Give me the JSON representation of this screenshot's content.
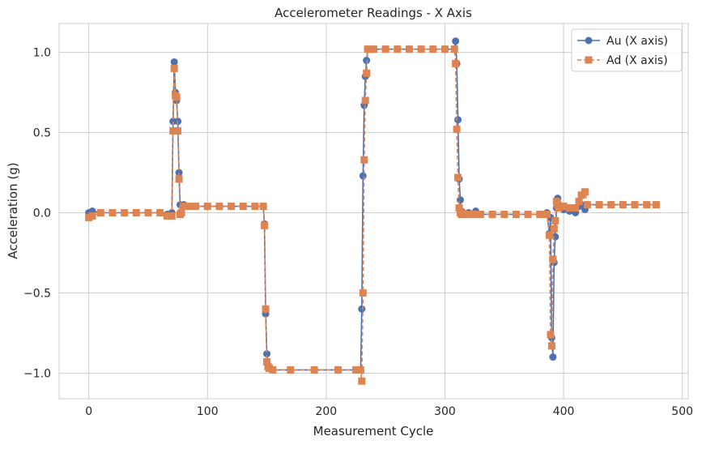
{
  "chart_data": {
    "type": "line",
    "title": "Accelerometer Readings - X Axis",
    "xlabel": "Measurement Cycle",
    "ylabel": "Acceleration (g)",
    "xlim": [
      -25,
      505
    ],
    "ylim": [
      -1.16,
      1.18
    ],
    "xticks": [
      0,
      100,
      200,
      300,
      400,
      500
    ],
    "xtick_labels": [
      "0",
      "100",
      "200",
      "300",
      "400",
      "500"
    ],
    "yticks": [
      -1.0,
      -0.5,
      0.0,
      0.5,
      1.0
    ],
    "ytick_labels": [
      "−1.0",
      "−0.5",
      "0.0",
      "0.5",
      "1.0"
    ],
    "grid": true,
    "legend_position": "top-right",
    "series": [
      {
        "name": "Au (X axis)",
        "color": "#4c72b0",
        "marker": "circle",
        "linestyle": "solid",
        "points": [
          [
            0,
            0.0
          ],
          [
            3,
            0.01
          ],
          [
            10,
            0.0
          ],
          [
            20,
            0.0
          ],
          [
            30,
            0.0
          ],
          [
            40,
            0.0
          ],
          [
            50,
            0.0
          ],
          [
            60,
            0.0
          ],
          [
            66,
            -0.01
          ],
          [
            70,
            0.0
          ],
          [
            71,
            0.57
          ],
          [
            72,
            0.94
          ],
          [
            73,
            0.75
          ],
          [
            74,
            0.7
          ],
          [
            75,
            0.57
          ],
          [
            76,
            0.25
          ],
          [
            77,
            0.05
          ],
          [
            78,
            0.0
          ],
          [
            80,
            0.05
          ],
          [
            85,
            0.04
          ],
          [
            90,
            0.04
          ],
          [
            100,
            0.04
          ],
          [
            110,
            0.04
          ],
          [
            120,
            0.04
          ],
          [
            130,
            0.04
          ],
          [
            140,
            0.04
          ],
          [
            147,
            0.04
          ],
          [
            148,
            -0.07
          ],
          [
            149,
            -0.63
          ],
          [
            150,
            -0.88
          ],
          [
            151,
            -0.95
          ],
          [
            152,
            -0.97
          ],
          [
            155,
            -0.98
          ],
          [
            170,
            -0.98
          ],
          [
            190,
            -0.98
          ],
          [
            210,
            -0.98
          ],
          [
            225,
            -0.98
          ],
          [
            229,
            -0.98
          ],
          [
            230,
            -0.6
          ],
          [
            231,
            0.23
          ],
          [
            232,
            0.67
          ],
          [
            233,
            0.85
          ],
          [
            234,
            0.95
          ],
          [
            235,
            1.02
          ],
          [
            240,
            1.02
          ],
          [
            250,
            1.02
          ],
          [
            260,
            1.02
          ],
          [
            270,
            1.02
          ],
          [
            280,
            1.02
          ],
          [
            290,
            1.02
          ],
          [
            300,
            1.02
          ],
          [
            308,
            1.02
          ],
          [
            309,
            1.07
          ],
          [
            310,
            0.93
          ],
          [
            311,
            0.58
          ],
          [
            312,
            0.21
          ],
          [
            313,
            0.08
          ],
          [
            314,
            0.01
          ],
          [
            315,
            0.0
          ],
          [
            320,
            0.0
          ],
          [
            326,
            0.01
          ],
          [
            330,
            -0.01
          ],
          [
            340,
            -0.01
          ],
          [
            350,
            -0.01
          ],
          [
            360,
            -0.01
          ],
          [
            370,
            -0.01
          ],
          [
            380,
            -0.01
          ],
          [
            386,
            0.0
          ],
          [
            388,
            -0.13
          ],
          [
            389,
            -0.03
          ],
          [
            390,
            -0.78
          ],
          [
            391,
            -0.9
          ],
          [
            392,
            -0.31
          ],
          [
            393,
            -0.15
          ],
          [
            394,
            0.03
          ],
          [
            395,
            0.09
          ],
          [
            396,
            0.05
          ],
          [
            398,
            0.04
          ],
          [
            400,
            0.02
          ],
          [
            405,
            0.01
          ],
          [
            410,
            0.0
          ],
          [
            413,
            0.04
          ],
          [
            415,
            0.05
          ],
          [
            418,
            0.02
          ],
          [
            420,
            0.05
          ],
          [
            430,
            0.05
          ],
          [
            440,
            0.05
          ],
          [
            450,
            0.05
          ],
          [
            460,
            0.05
          ],
          [
            470,
            0.05
          ],
          [
            478,
            0.05
          ]
        ]
      },
      {
        "name": "Ad (X axis)",
        "color": "#dd8452",
        "marker": "square",
        "linestyle": "dashed",
        "points": [
          [
            0,
            -0.03
          ],
          [
            3,
            -0.02
          ],
          [
            10,
            0.0
          ],
          [
            20,
            0.0
          ],
          [
            30,
            0.0
          ],
          [
            40,
            0.0
          ],
          [
            50,
            0.0
          ],
          [
            60,
            0.0
          ],
          [
            66,
            -0.02
          ],
          [
            70,
            -0.02
          ],
          [
            71,
            0.51
          ],
          [
            72,
            0.9
          ],
          [
            73,
            0.73
          ],
          [
            74,
            0.72
          ],
          [
            75,
            0.51
          ],
          [
            76,
            0.21
          ],
          [
            77,
            -0.01
          ],
          [
            78,
            0.0
          ],
          [
            80,
            0.04
          ],
          [
            85,
            0.04
          ],
          [
            90,
            0.04
          ],
          [
            100,
            0.04
          ],
          [
            110,
            0.04
          ],
          [
            120,
            0.04
          ],
          [
            130,
            0.04
          ],
          [
            140,
            0.04
          ],
          [
            147,
            0.04
          ],
          [
            148,
            -0.08
          ],
          [
            149,
            -0.6
          ],
          [
            150,
            -0.93
          ],
          [
            151,
            -0.96
          ],
          [
            152,
            -0.97
          ],
          [
            155,
            -0.98
          ],
          [
            170,
            -0.98
          ],
          [
            190,
            -0.98
          ],
          [
            210,
            -0.98
          ],
          [
            225,
            -0.98
          ],
          [
            229,
            -0.98
          ],
          [
            230,
            -1.05
          ],
          [
            231,
            -0.5
          ],
          [
            232,
            0.33
          ],
          [
            233,
            0.7
          ],
          [
            234,
            0.87
          ],
          [
            235,
            1.02
          ],
          [
            240,
            1.02
          ],
          [
            250,
            1.02
          ],
          [
            260,
            1.02
          ],
          [
            270,
            1.02
          ],
          [
            280,
            1.02
          ],
          [
            290,
            1.02
          ],
          [
            300,
            1.02
          ],
          [
            308,
            1.02
          ],
          [
            309,
            0.93
          ],
          [
            310,
            0.52
          ],
          [
            311,
            0.22
          ],
          [
            312,
            0.03
          ],
          [
            313,
            0.0
          ],
          [
            314,
            -0.01
          ],
          [
            315,
            -0.01
          ],
          [
            320,
            -0.01
          ],
          [
            326,
            -0.01
          ],
          [
            330,
            -0.01
          ],
          [
            340,
            -0.01
          ],
          [
            350,
            -0.01
          ],
          [
            360,
            -0.01
          ],
          [
            370,
            -0.01
          ],
          [
            380,
            -0.01
          ],
          [
            386,
            -0.01
          ],
          [
            388,
            -0.14
          ],
          [
            389,
            -0.76
          ],
          [
            390,
            -0.83
          ],
          [
            391,
            -0.29
          ],
          [
            392,
            -0.1
          ],
          [
            393,
            -0.05
          ],
          [
            394,
            0.07
          ],
          [
            395,
            0.05
          ],
          [
            396,
            0.03
          ],
          [
            398,
            0.04
          ],
          [
            400,
            0.04
          ],
          [
            405,
            0.03
          ],
          [
            410,
            0.03
          ],
          [
            413,
            0.07
          ],
          [
            415,
            0.11
          ],
          [
            418,
            0.13
          ],
          [
            420,
            0.05
          ],
          [
            430,
            0.05
          ],
          [
            440,
            0.05
          ],
          [
            450,
            0.05
          ],
          [
            460,
            0.05
          ],
          [
            470,
            0.05
          ],
          [
            478,
            0.05
          ]
        ]
      }
    ]
  }
}
